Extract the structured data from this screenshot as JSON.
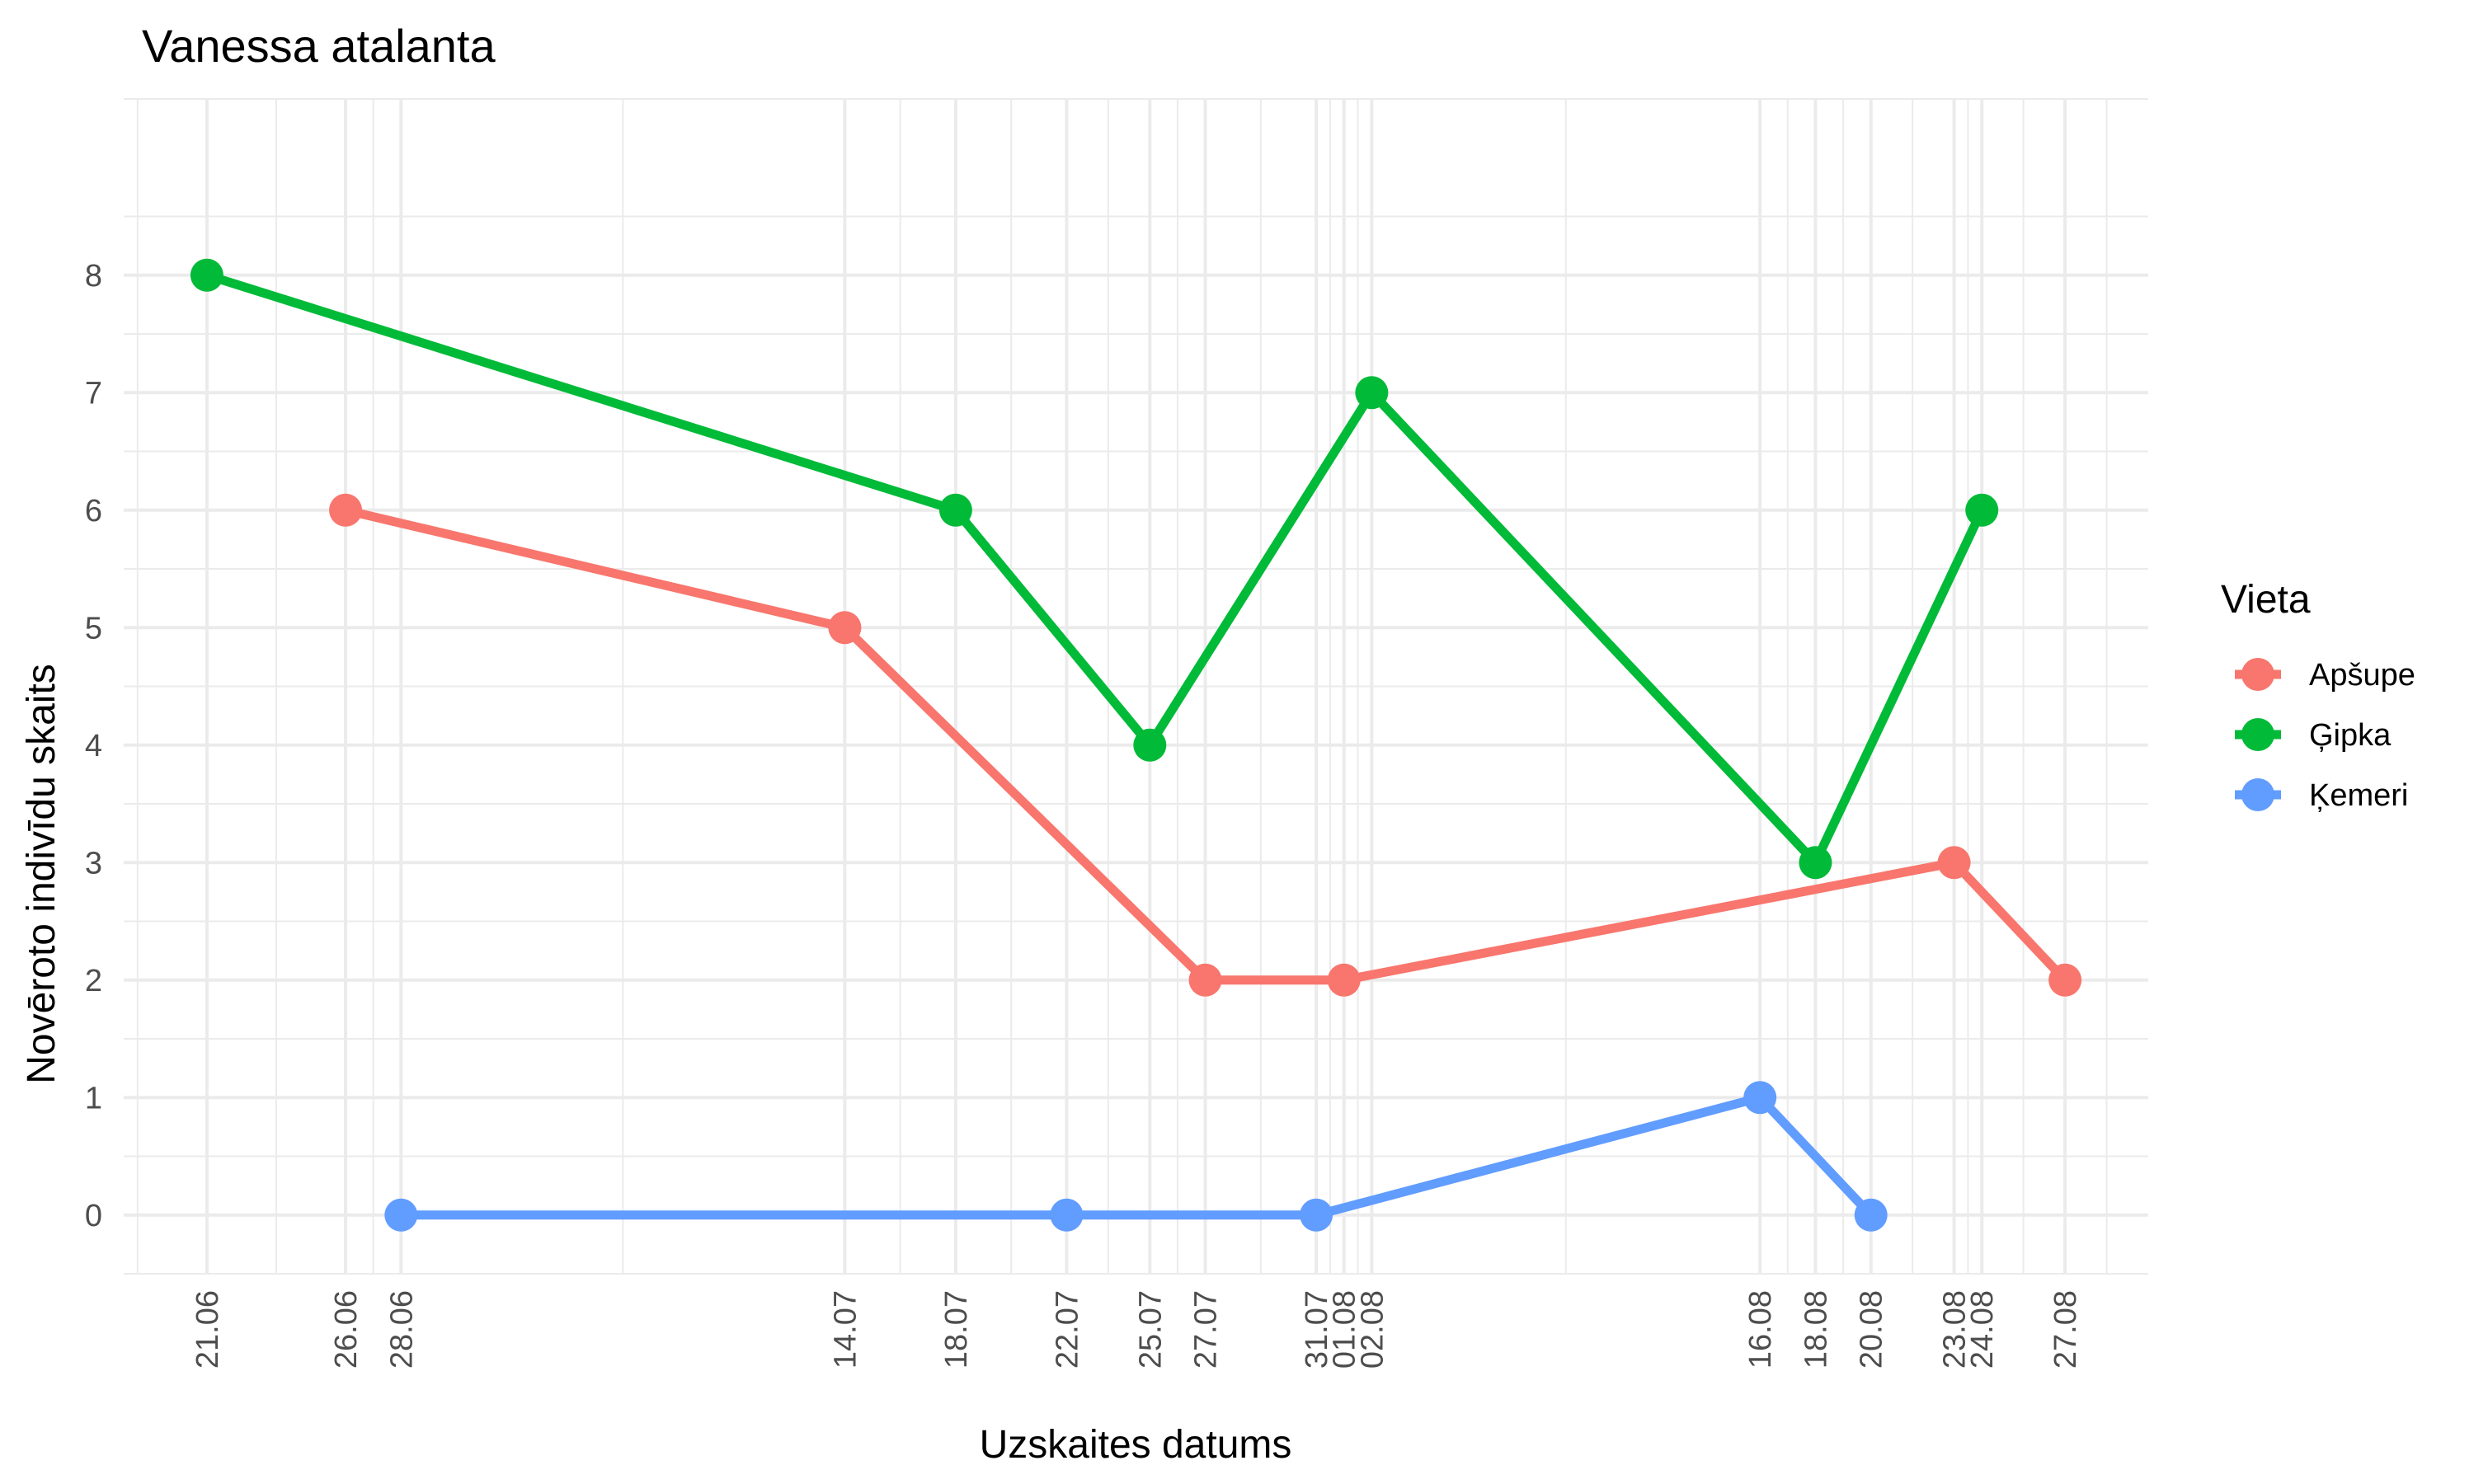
{
  "chart_data": {
    "type": "line",
    "title": "Vanessa atalanta",
    "xlabel": "Uzskaites datums",
    "ylabel": "Novēroto indivīdu skaits",
    "x_axis_type": "date",
    "year": 2024,
    "x_tick_labels": [
      "21.06",
      "26.06",
      "28.06",
      "14.07",
      "18.07",
      "22.07",
      "25.07",
      "27.07",
      "31.07",
      "01.08",
      "02.08",
      "16.08",
      "18.08",
      "20.08",
      "23.08",
      "24.08",
      "27.08"
    ],
    "x_tick_dates": [
      "2024-06-21",
      "2024-06-26",
      "2024-06-28",
      "2024-07-14",
      "2024-07-18",
      "2024-07-22",
      "2024-07-25",
      "2024-07-27",
      "2024-07-31",
      "2024-08-01",
      "2024-08-02",
      "2024-08-16",
      "2024-08-18",
      "2024-08-20",
      "2024-08-23",
      "2024-08-24",
      "2024-08-27"
    ],
    "xlim": [
      "2024-06-18",
      "2024-08-30"
    ],
    "y_ticks": [
      0,
      1,
      2,
      3,
      4,
      5,
      6,
      7,
      8
    ],
    "ylim": [
      -0.5,
      9.5
    ],
    "grid": true,
    "legend": {
      "title": "Vieta",
      "position": "right"
    },
    "series": [
      {
        "name": "Apšupe",
        "color": "#F8766D",
        "x": [
          "2024-06-26",
          "2024-07-14",
          "2024-07-27",
          "2024-08-01",
          "2024-08-23",
          "2024-08-27"
        ],
        "y": [
          6,
          5,
          2,
          2,
          3,
          2
        ]
      },
      {
        "name": "Ģipka",
        "color": "#00BA38",
        "x": [
          "2024-06-21",
          "2024-07-18",
          "2024-07-25",
          "2024-08-02",
          "2024-08-18",
          "2024-08-24"
        ],
        "y": [
          8,
          6,
          4,
          7,
          3,
          6
        ]
      },
      {
        "name": "Ķemeri",
        "color": "#619CFF",
        "x": [
          "2024-06-28",
          "2024-07-22",
          "2024-07-31",
          "2024-08-16",
          "2024-08-20"
        ],
        "y": [
          0,
          0,
          0,
          1,
          0
        ]
      }
    ]
  }
}
